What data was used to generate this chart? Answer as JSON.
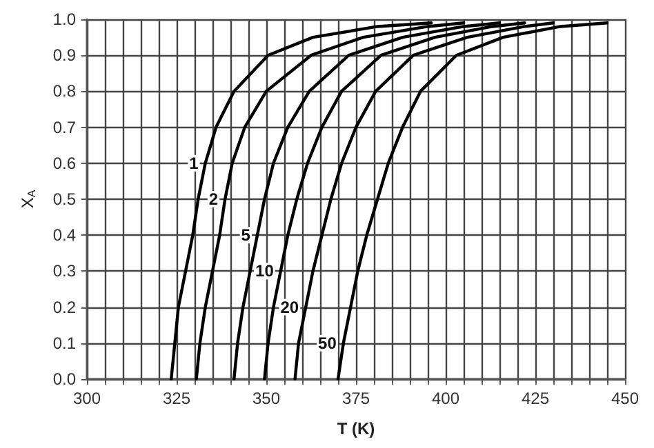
{
  "chart_data": {
    "type": "line",
    "xlabel": "T (K)",
    "ylabel": "X$_{A}$",
    "xlim": [
      300,
      450
    ],
    "xticks": [
      300,
      {
        "value": 305,
        "label": null
      },
      {
        "value": 310,
        "label": null
      },
      {
        "value": 315,
        "label": null
      },
      {
        "value": 320,
        "label": null
      },
      325,
      {
        "value": 330,
        "label": null
      },
      {
        "value": 335,
        "label": null
      },
      {
        "value": 340,
        "label": null
      },
      {
        "value": 345,
        "label": null
      },
      350,
      {
        "value": 355,
        "label": null
      },
      {
        "value": 360,
        "label": null
      },
      {
        "value": 365,
        "label": null
      },
      {
        "value": 370,
        "label": null
      },
      375,
      {
        "value": 380,
        "label": null
      },
      {
        "value": 385,
        "label": null
      },
      {
        "value": 390,
        "label": null
      },
      {
        "value": 395,
        "label": null
      },
      400,
      {
        "value": 405,
        "label": null
      },
      {
        "value": 410,
        "label": null
      },
      {
        "value": 415,
        "label": null
      },
      {
        "value": 420,
        "label": null
      },
      425,
      {
        "value": 430,
        "label": null
      },
      {
        "value": 435,
        "label": null
      },
      {
        "value": 440,
        "label": null
      },
      {
        "value": 445,
        "label": null
      },
      450
    ],
    "ylim": [
      0,
      1
    ],
    "yticks": [
      {
        "value": 0,
        "label": "0.0"
      },
      0.1,
      0.2,
      0.3,
      0.4,
      0.5,
      0.6,
      0.7,
      0.8,
      0.9,
      {
        "value": 1,
        "label": "1.0"
      }
    ],
    "grid": true,
    "legend": false,
    "marker": "none",
    "line_style": "solid",
    "series": [
      {
        "name": "1",
        "color": "#000000",
        "x": [
          323.5,
          324.5,
          325.5,
          327.5,
          329.5,
          331,
          333,
          336,
          341,
          350.5,
          363,
          381,
          396
        ],
        "values": [
          0,
          0.1,
          0.2,
          0.3,
          0.4,
          0.5,
          0.6,
          0.7,
          0.8,
          0.9,
          0.95,
          0.98,
          0.99
        ]
      },
      {
        "name": "2",
        "color": "#000000",
        "x": [
          330.5,
          331.5,
          333,
          335,
          337,
          338.5,
          340.5,
          344,
          350,
          362.5,
          377,
          395,
          405
        ],
        "values": [
          0,
          0.1,
          0.2,
          0.3,
          0.4,
          0.5,
          0.6,
          0.7,
          0.8,
          0.9,
          0.95,
          0.98,
          0.99
        ]
      },
      {
        "name": "5",
        "color": "#000000",
        "x": [
          341,
          342,
          343.5,
          345.5,
          347.5,
          349.5,
          352,
          356,
          362,
          373,
          388,
          405,
          415
        ],
        "values": [
          0,
          0.1,
          0.2,
          0.3,
          0.4,
          0.5,
          0.6,
          0.7,
          0.8,
          0.9,
          0.95,
          0.98,
          0.99
        ]
      },
      {
        "name": "10",
        "color": "#000000",
        "x": [
          349.5,
          350.5,
          352,
          354,
          356,
          358.5,
          361.5,
          365.5,
          371,
          382,
          397,
          413,
          422
        ],
        "values": [
          0,
          0.1,
          0.2,
          0.3,
          0.4,
          0.5,
          0.6,
          0.7,
          0.8,
          0.9,
          0.95,
          0.98,
          0.99
        ]
      },
      {
        "name": "20",
        "color": "#000000",
        "x": [
          358,
          359,
          361,
          363,
          365.5,
          368,
          371,
          375,
          380.5,
          391,
          406,
          422,
          430
        ],
        "values": [
          0,
          0.1,
          0.2,
          0.3,
          0.4,
          0.5,
          0.6,
          0.7,
          0.8,
          0.9,
          0.95,
          0.98,
          0.99
        ]
      },
      {
        "name": "50",
        "color": "#000000",
        "x": [
          370,
          371.5,
          373.5,
          375.5,
          378,
          381,
          384,
          388,
          393,
          403,
          416,
          432,
          445
        ],
        "values": [
          0,
          0.1,
          0.2,
          0.3,
          0.4,
          0.5,
          0.6,
          0.7,
          0.8,
          0.9,
          0.95,
          0.98,
          0.99
        ]
      }
    ]
  }
}
